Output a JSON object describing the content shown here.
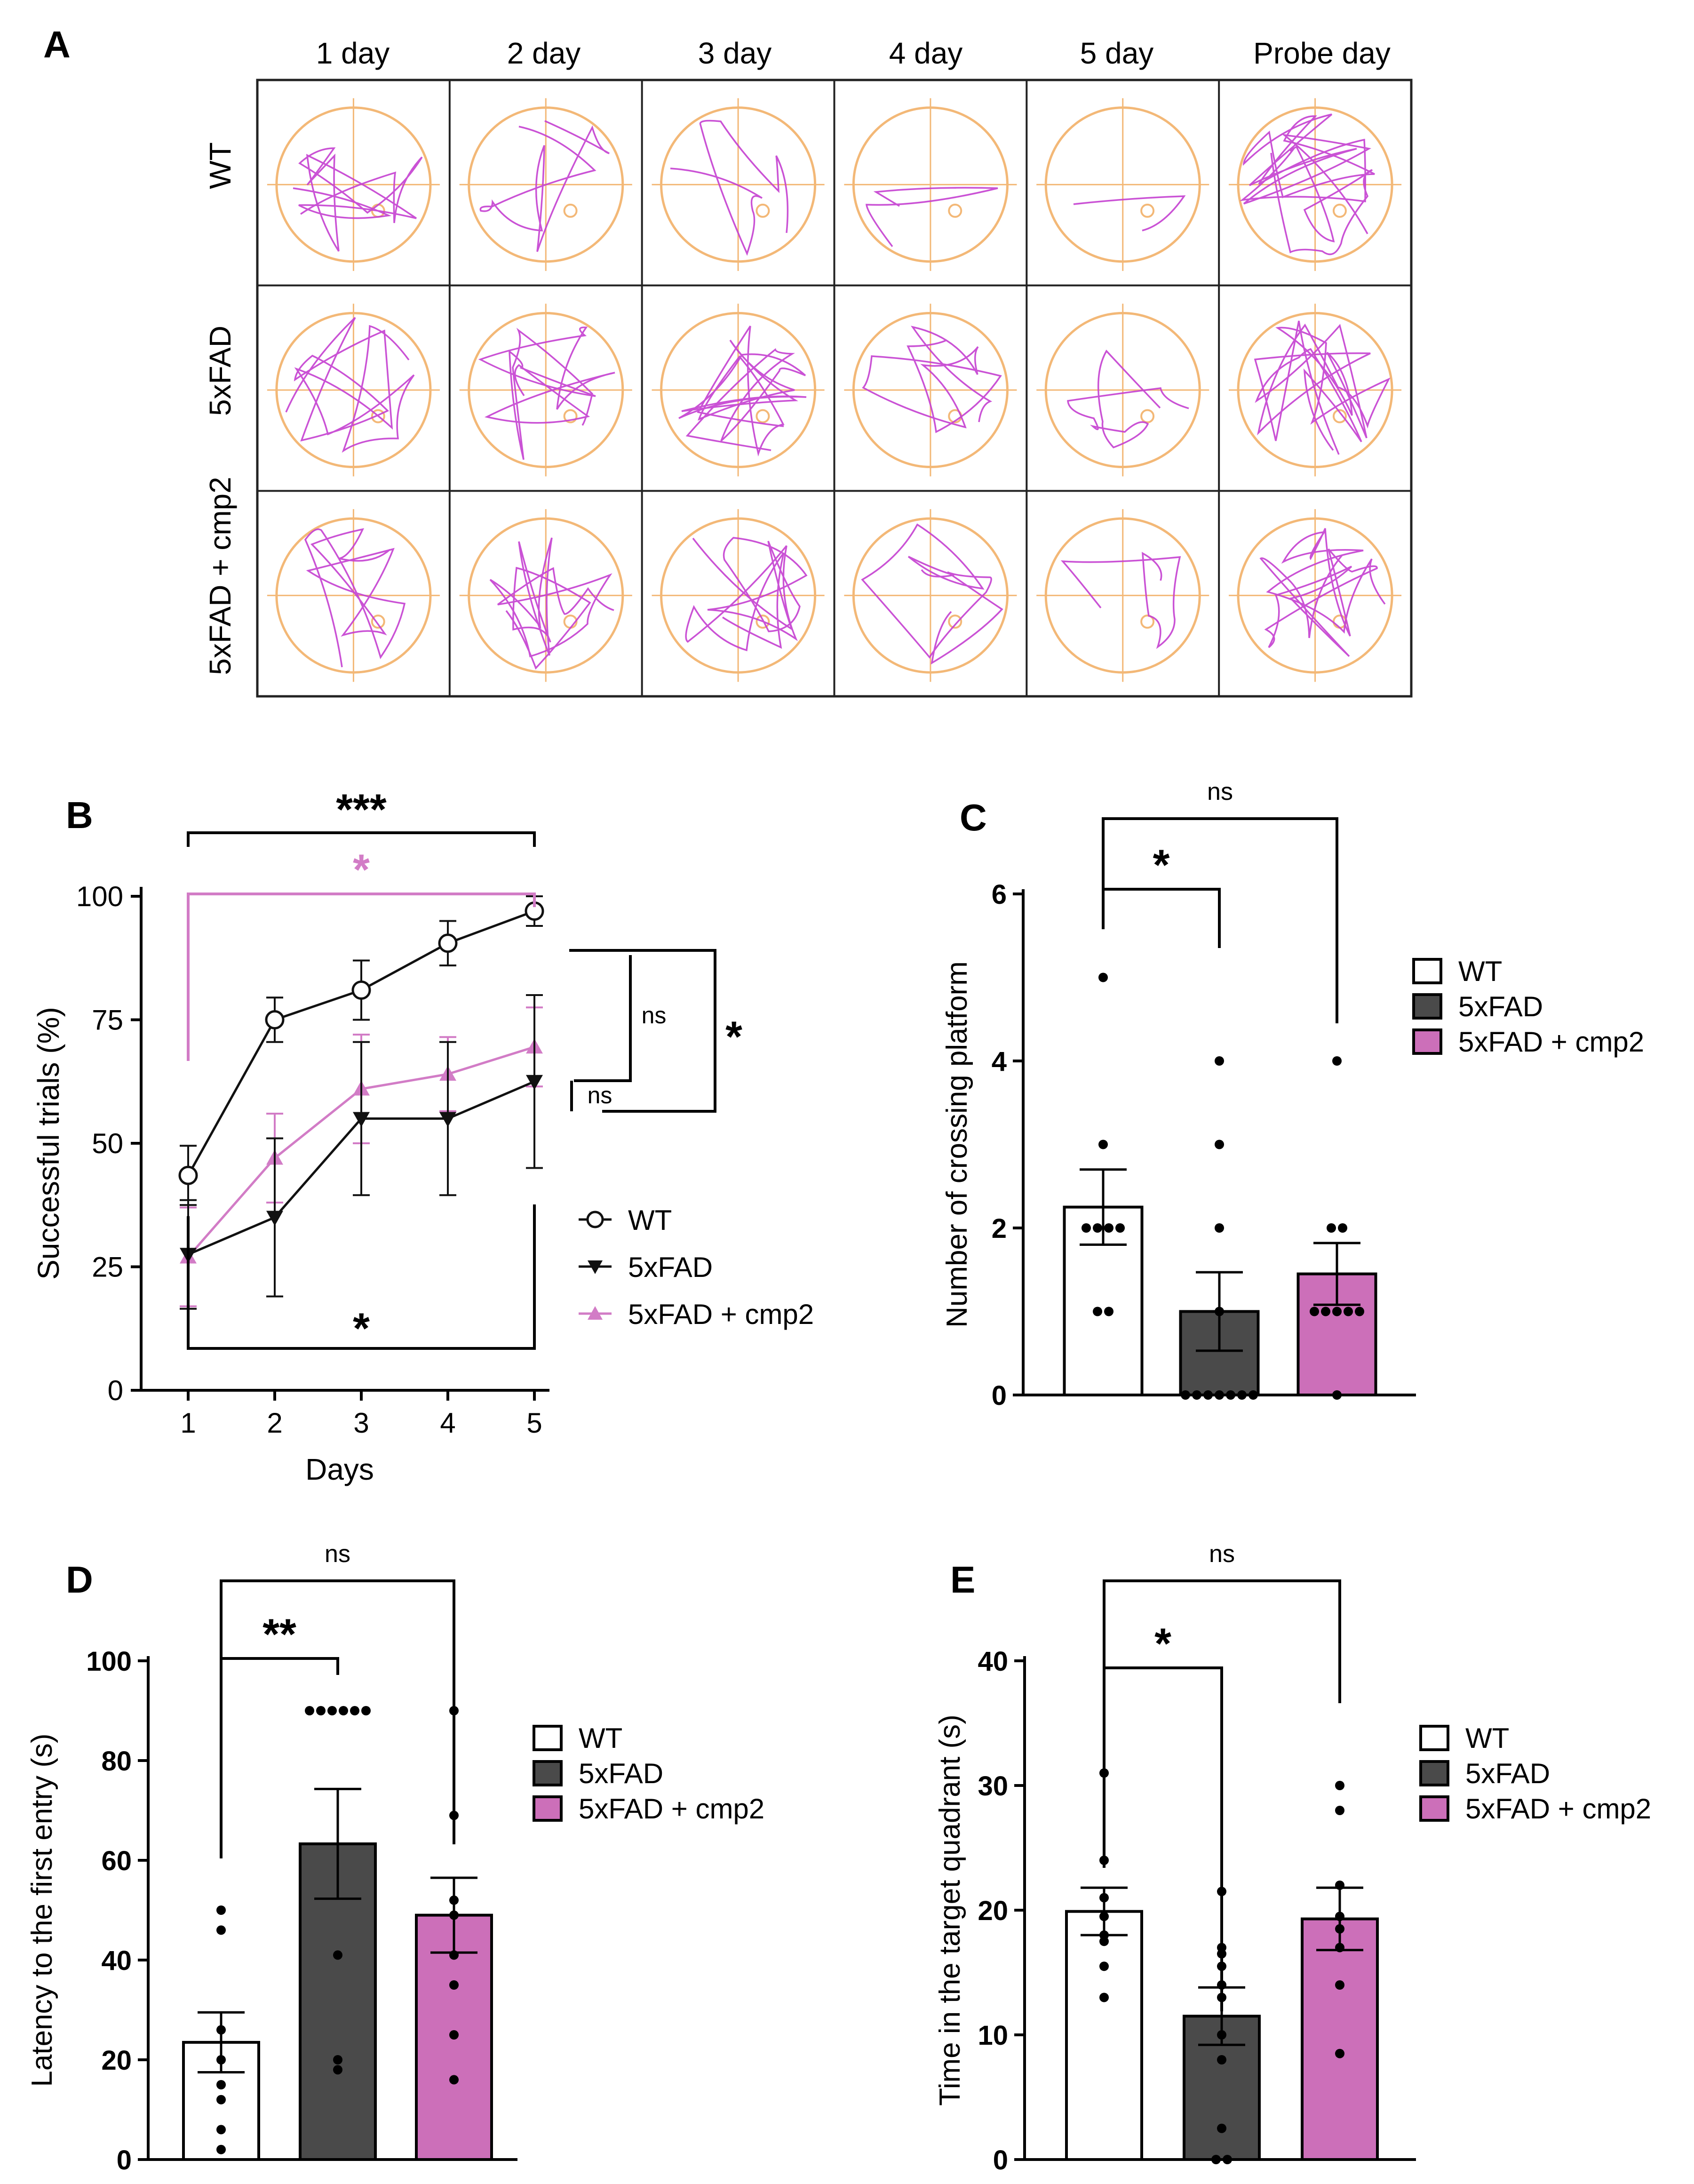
{
  "panel_a": {
    "letter": "A",
    "day_labels": [
      "1 day",
      "2 day",
      "3 day",
      "4 day",
      "5 day",
      "Probe day"
    ],
    "group_labels": [
      "WT",
      "5xFAD",
      "5xFAD + cmp2"
    ],
    "colors": {
      "path": "#c43fd0",
      "pool": "#f3b877",
      "grid": "#222222"
    }
  },
  "colors": {
    "wt": "#ffffff",
    "fad": "#4a4a4a",
    "cmp2": "#cc6fb9",
    "cmp2_line": "#d27cc6"
  },
  "chart_data": [
    {
      "panel": "B",
      "type": "line",
      "xlabel": "Days",
      "ylabel": "Successful trials (%)",
      "x": [
        1,
        2,
        3,
        4,
        5
      ],
      "ylim": [
        0,
        100
      ],
      "yticks": [
        0,
        25,
        50,
        75,
        100
      ],
      "series": [
        {
          "name": "WT",
          "marker": "open-circle",
          "values": [
            43.5,
            75,
            81,
            90.5,
            97
          ],
          "errors": [
            6,
            4.5,
            6,
            4.5,
            3
          ]
        },
        {
          "name": "5xFAD",
          "marker": "down-triangle",
          "values": [
            27.5,
            35,
            55,
            55,
            62.5
          ],
          "errors": [
            11,
            16,
            15.5,
            15.5,
            17.5
          ]
        },
        {
          "name": "5xFAD + cmp2",
          "marker": "up-triangle",
          "values": [
            27,
            47,
            61,
            64,
            69.5
          ],
          "errors": [
            10,
            9,
            11,
            7.5,
            8
          ]
        }
      ],
      "legend": [
        "WT",
        "5xFAD",
        "5xFAD + cmp2"
      ],
      "annotations": {
        "top_black": "***",
        "top_pink": "*",
        "bottom": "*",
        "right_outer": "*",
        "right_ns_upper": "ns",
        "right_ns_lower": "ns"
      }
    },
    {
      "panel": "C",
      "type": "bar",
      "ylabel": "Number of crossing platform",
      "categories": [
        "WT",
        "5xFAD",
        "5xFAD + cmp2"
      ],
      "values": [
        2.25,
        1.0,
        1.45
      ],
      "errors": [
        0.45,
        0.47,
        0.37
      ],
      "points": [
        [
          5,
          3,
          2,
          2,
          2,
          2,
          1,
          1
        ],
        [
          4,
          3,
          2,
          1,
          0,
          0,
          0,
          0,
          0,
          0,
          0
        ],
        [
          4,
          2,
          2,
          1,
          1,
          1,
          1,
          1,
          0
        ]
      ],
      "ylim": [
        0,
        6
      ],
      "yticks": [
        0,
        2,
        4,
        6
      ],
      "legend": [
        "WT",
        "5xFAD",
        "5xFAD + cmp2"
      ],
      "annotations": {
        "sig_low": "*",
        "sig_high": "ns"
      }
    },
    {
      "panel": "D",
      "type": "bar",
      "ylabel": "Latency to the first entry (s)",
      "categories": [
        "WT",
        "5xFAD",
        "5xFAD + cmp2"
      ],
      "values": [
        23.5,
        63.3,
        49
      ],
      "errors": [
        6,
        11,
        7.5
      ],
      "points": [
        [
          50,
          46,
          26,
          20,
          15,
          12,
          6,
          2
        ],
        [
          90,
          90,
          90,
          90,
          90,
          90,
          41,
          20,
          18
        ],
        [
          90,
          69,
          52,
          49,
          41,
          35,
          25,
          16
        ]
      ],
      "ylim": [
        0,
        100
      ],
      "yticks": [
        0,
        20,
        40,
        60,
        80,
        100
      ],
      "legend": [
        "WT",
        "5xFAD",
        "5xFAD + cmp2"
      ],
      "annotations": {
        "sig_low": "**",
        "sig_high": "ns"
      }
    },
    {
      "panel": "E",
      "type": "bar",
      "ylabel": "Time in the target quadrant (s)",
      "categories": [
        "WT",
        "5xFAD",
        "5xFAD + cmp2"
      ],
      "values": [
        19.9,
        11.5,
        19.3
      ],
      "errors": [
        1.9,
        2.3,
        2.5
      ],
      "points": [
        [
          31,
          24,
          21,
          19.5,
          18,
          17.5,
          15.5,
          13
        ],
        [
          21.5,
          17,
          16.5,
          15.5,
          14,
          13,
          10,
          8,
          2.5,
          0,
          0
        ],
        [
          30,
          28,
          22,
          19.5,
          18.5,
          17,
          14,
          8.5
        ]
      ],
      "ylim": [
        0,
        40
      ],
      "yticks": [
        0,
        10,
        20,
        30,
        40
      ],
      "legend": [
        "WT",
        "5xFAD",
        "5xFAD + cmp2"
      ],
      "annotations": {
        "sig_low": "*",
        "sig_high": "ns"
      }
    }
  ]
}
